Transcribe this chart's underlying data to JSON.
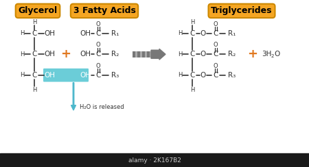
{
  "bg_color": "#ffffff",
  "box_color": "#f5a623",
  "box_edge_color": "#cc8800",
  "box_text_color": "#000000",
  "line_color": "#333333",
  "highlight_color": "#5bc8d4",
  "arrow_color": "#888888",
  "water_arrow_color": "#4db8cc",
  "plus_color": "#e07820",
  "title_glycerol": "Glycerol",
  "title_fatty": "3 Fatty Acids",
  "title_tri": "Triglycerides",
  "water_text": "H₂O is released",
  "font_size_title": 9,
  "font_size_chem": 7.5,
  "font_size_small": 6.0
}
